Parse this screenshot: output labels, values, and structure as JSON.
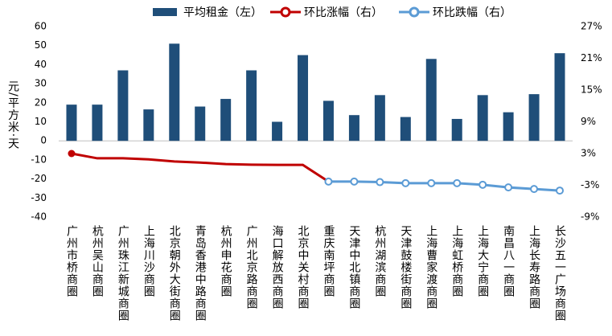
{
  "chart_data": {
    "type": "bar_line",
    "categories": [
      "广州市桥商圈",
      "杭州吴山商圈",
      "广州珠江新城商圈",
      "上海川沙商圈",
      "北京朝外大街商圈",
      "青岛香港中路商圈",
      "杭州申花商圈",
      "广州北京路商圈",
      "海口解放西商圈",
      "北京中关村商圈",
      "重庆南坪商圈",
      "天津中北镇商圈",
      "杭州湖滨商圈",
      "天津鼓楼街商圈",
      "上海曹家渡商圈",
      "上海虹桥商圈",
      "上海大宁商圈",
      "南昌八一商圈",
      "上海长寿路商圈",
      "长沙五一广场商圈"
    ],
    "ylabel": "元/平方米·天",
    "ylim": [
      -40,
      60
    ],
    "yticks": [
      -40,
      -30,
      -20,
      -10,
      0,
      10,
      20,
      30,
      40,
      50,
      60
    ],
    "y2lim": [
      -9,
      27
    ],
    "y2ticks": [
      {
        "value": -9,
        "label": "-9%"
      },
      {
        "value": -3,
        "label": "-3%"
      },
      {
        "value": 3,
        "label": "3%"
      },
      {
        "value": 9,
        "label": "9%"
      },
      {
        "value": 15,
        "label": "15%"
      },
      {
        "value": 21,
        "label": "21%"
      },
      {
        "value": 27,
        "label": "27%"
      }
    ],
    "series": [
      {
        "name": "平均租金（左）",
        "kind": "bar",
        "color": "#1f4e79",
        "values": [
          19,
          19,
          37,
          16.5,
          51,
          18,
          22,
          37,
          10,
          45,
          21,
          13.5,
          24,
          12.5,
          43,
          11.5,
          24,
          15,
          24.5,
          46
        ]
      },
      {
        "name": "环比涨幅（右）",
        "kind": "line",
        "axis": "y2",
        "color": "#c00000",
        "values": [
          3.0,
          2.1,
          2.1,
          1.9,
          1.5,
          1.3,
          1.0,
          0.9,
          0.85,
          0.85,
          -2.3,
          null,
          null,
          null,
          null,
          null,
          null,
          null,
          null,
          null
        ]
      },
      {
        "name": "环比跌幅（右）",
        "kind": "line",
        "axis": "y2",
        "color": "#5b9bd5",
        "markers": true,
        "values": [
          null,
          null,
          null,
          null,
          null,
          null,
          null,
          null,
          null,
          null,
          -2.3,
          -2.3,
          -2.4,
          -2.6,
          -2.6,
          -2.6,
          -2.9,
          -3.4,
          -3.7,
          -4.0
        ]
      }
    ]
  }
}
